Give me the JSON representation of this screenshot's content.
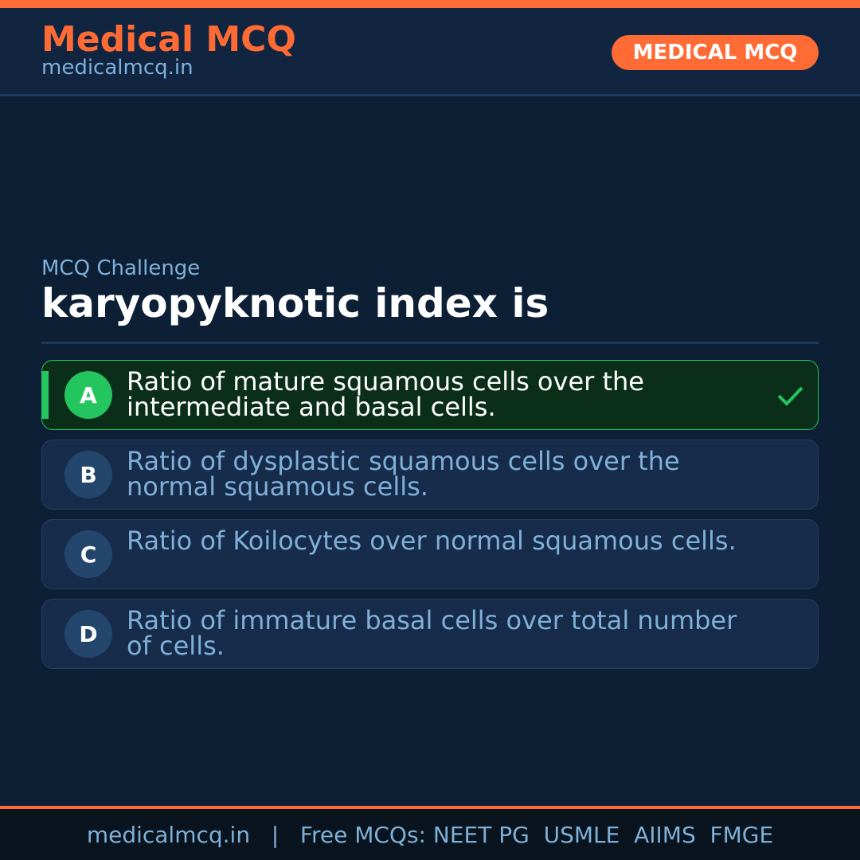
{
  "header": {
    "brand": "Medical MCQ",
    "site": "medicalmcq.in",
    "badge": "MEDICAL MCQ"
  },
  "colors": {
    "accent": "#ff6b35",
    "correct": "#22c55e",
    "background": "#0d1f35"
  },
  "quiz": {
    "kicker": "MCQ Challenge",
    "question": "karyopyknotic index is",
    "correct_option": "A",
    "options": [
      {
        "letter": "A",
        "text": "Ratio of mature squamous cells over the intermediate and basal cells.",
        "icon": "check-icon"
      },
      {
        "letter": "B",
        "text": "Ratio of dysplastic squamous cells over the normal squamous cells."
      },
      {
        "letter": "C",
        "text": "Ratio of Koilocytes over normal squamous cells."
      },
      {
        "letter": "D",
        "text": "Ratio of immature basal cells over total number of cells."
      }
    ]
  },
  "footer": {
    "text": "medicalmcq.in   |   Free MCQs: NEET PG  USMLE  AIIMS  FMGE"
  }
}
